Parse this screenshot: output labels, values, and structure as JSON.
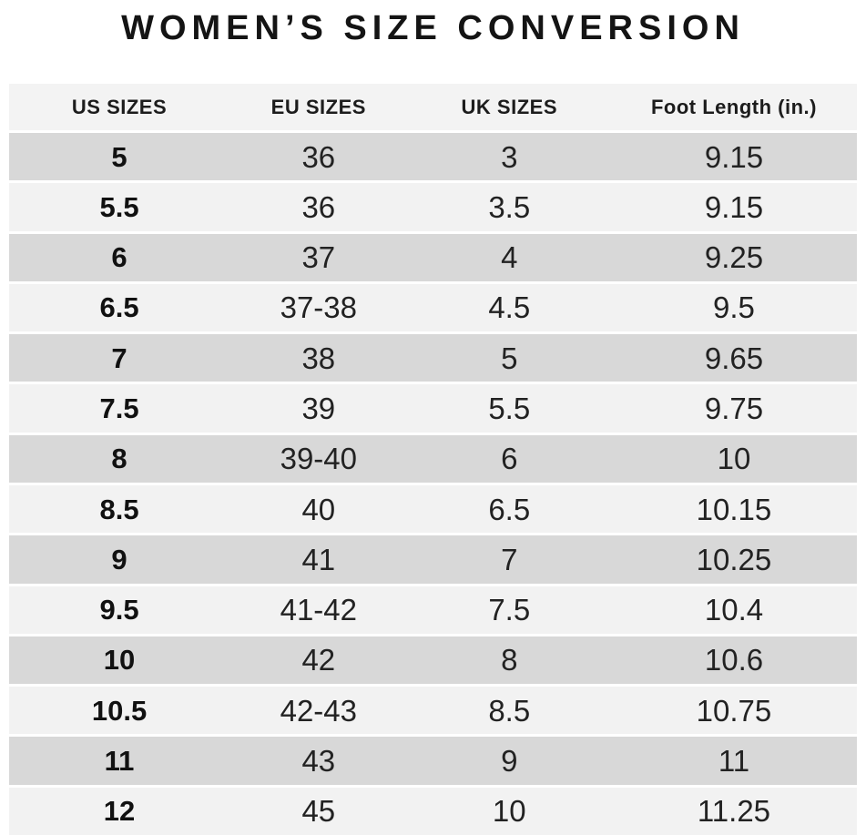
{
  "title": "WOMEN’S SIZE CONVERSION",
  "colors": {
    "page_background": "#ffffff",
    "header_background": "#f3f3f3",
    "row_dark": "#d8d8d8",
    "row_light": "#f2f2f2",
    "text": "#1b1b1b"
  },
  "chart_data": {
    "type": "table",
    "title": "WOMEN’S SIZE CONVERSION",
    "columns": [
      "US SIZES",
      "EU SIZES",
      "UK SIZES",
      "Foot Length (in.)"
    ],
    "rows": [
      [
        "5",
        "36",
        "3",
        "9.15"
      ],
      [
        "5.5",
        "36",
        "3.5",
        "9.15"
      ],
      [
        "6",
        "37",
        "4",
        "9.25"
      ],
      [
        "6.5",
        "37-38",
        "4.5",
        "9.5"
      ],
      [
        "7",
        "38",
        "5",
        "9.65"
      ],
      [
        "7.5",
        "39",
        "5.5",
        "9.75"
      ],
      [
        "8",
        "39-40",
        "6",
        "10"
      ],
      [
        "8.5",
        "40",
        "6.5",
        "10.15"
      ],
      [
        "9",
        "41",
        "7",
        "10.25"
      ],
      [
        "9.5",
        "41-42",
        "7.5",
        "10.4"
      ],
      [
        "10",
        "42",
        "8",
        "10.6"
      ],
      [
        "10.5",
        "42-43",
        "8.5",
        "10.75"
      ],
      [
        "11",
        "43",
        "9",
        "11"
      ],
      [
        "12",
        "45",
        "10",
        "11.25"
      ]
    ],
    "layout": {
      "striped": true,
      "stripe_order": "first-row-dark",
      "header_position": "top",
      "column_alignment": "center"
    }
  }
}
